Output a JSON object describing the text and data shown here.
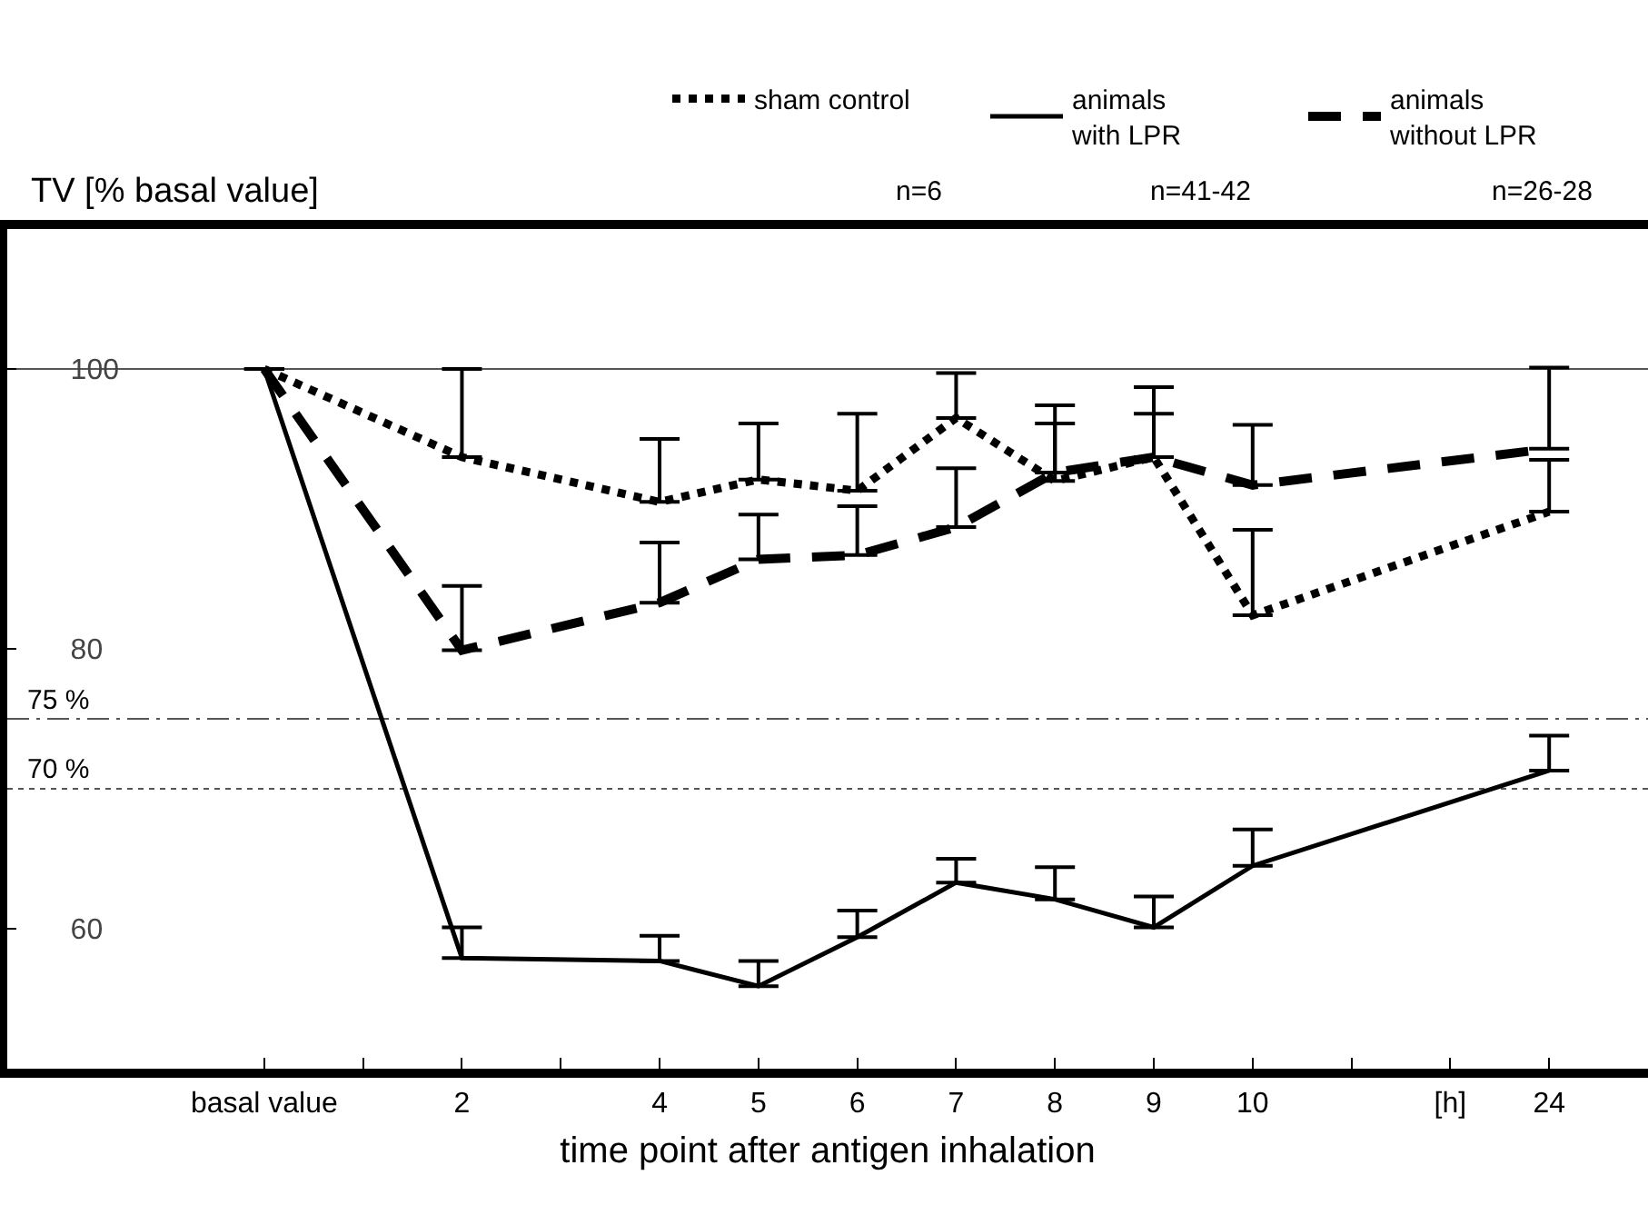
{
  "chart_data": {
    "type": "line",
    "ylabel": "TV [% basal value]",
    "xlabel": "time point after antigen inhalation",
    "categories": [
      "basal value",
      null,
      "2",
      null,
      "4",
      "5",
      "6",
      "7",
      "8",
      "9",
      "10",
      null,
      "[h]",
      "24"
    ],
    "series": [
      {
        "name": "sham control",
        "color": "#000000",
        "line_style": "dotted",
        "values": [
          100,
          null,
          93.7,
          null,
          90.5,
          92.1,
          91.3,
          96.5,
          92.0,
          93.7,
          82.4,
          null,
          null,
          89.8
        ],
        "errors": [
          null,
          null,
          [
            93.7,
            100
          ],
          null,
          [
            90.5,
            95
          ],
          [
            92.1,
            96.1
          ],
          [
            91.3,
            96.8
          ],
          [
            96.5,
            99.7
          ],
          [
            92.0,
            97.4
          ],
          [
            93.7,
            98.7
          ],
          [
            82.4,
            88.5
          ],
          null,
          null,
          [
            89.8,
            93.5
          ]
        ]
      },
      {
        "name": "animals with LPR",
        "color": "#000000",
        "line_style": "solid",
        "values": [
          100,
          null,
          57.9,
          null,
          57.7,
          55.9,
          59.4,
          63.3,
          62.1,
          60.1,
          64.5,
          null,
          null,
          71.3
        ],
        "errors": [
          null,
          null,
          [
            57.9,
            60.1
          ],
          null,
          [
            57.7,
            59.5
          ],
          [
            55.9,
            57.7
          ],
          [
            59.4,
            61.3
          ],
          [
            63.3,
            65.0
          ],
          [
            62.1,
            64.4
          ],
          [
            60.1,
            62.3
          ],
          [
            64.5,
            67.1
          ],
          null,
          null,
          [
            71.3,
            73.8
          ]
        ]
      },
      {
        "name": "animals without LPR",
        "color": "#000000",
        "line_style": "dashed",
        "values": [
          100,
          null,
          79.9,
          null,
          83.3,
          86.4,
          86.7,
          88.7,
          92.6,
          93.7,
          91.7,
          null,
          null,
          94.3
        ],
        "errors": [
          null,
          null,
          [
            79.9,
            84.5
          ],
          null,
          [
            83.3,
            87.6
          ],
          [
            86.4,
            89.6
          ],
          [
            86.7,
            90.2
          ],
          [
            88.7,
            92.9
          ],
          [
            92.6,
            96.1
          ],
          [
            93.7,
            96.8
          ],
          [
            91.7,
            96.0
          ],
          null,
          null,
          [
            94.3,
            100.1
          ]
        ]
      }
    ],
    "annotations": [
      "n=6",
      "n=41-42",
      "n=26-28"
    ],
    "ylim": [
      50,
      110
    ],
    "yticks": [
      60,
      80,
      100
    ],
    "ref_lines": [
      {
        "axis": "y",
        "value": 100,
        "label": null,
        "line_style": "solid",
        "color": "#555555"
      },
      {
        "axis": "y",
        "value": 75,
        "label": "75 %",
        "line_style": "dashdot",
        "color": "#555555"
      },
      {
        "axis": "y",
        "value": 70,
        "label": "70 %",
        "line_style": "dotted",
        "color": "#555555"
      }
    ],
    "grid": false,
    "legend": "top",
    "marker": "none"
  }
}
